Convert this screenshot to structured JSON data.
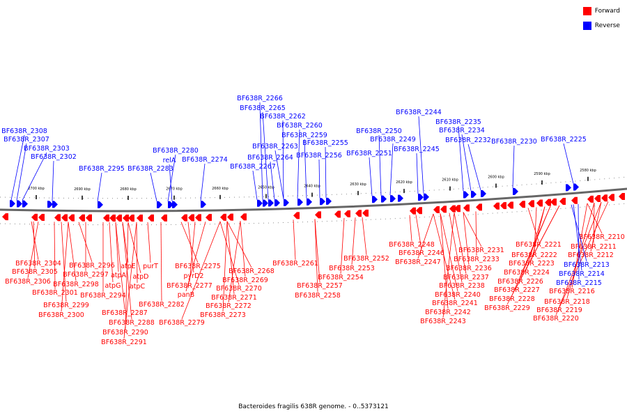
{
  "legend": {
    "forward": {
      "label": "Forward",
      "color": "#ff0000"
    },
    "reverse": {
      "label": "Reverse",
      "color": "#0000ff"
    }
  },
  "caption": "Bacteroides fragilis 638R genome. - 0..5373121",
  "axis": {
    "ticks": [
      "2700 kbp",
      "2690 kbp",
      "2680 kbp",
      "2670 kbp",
      "2660 kbp",
      "2650 kbp",
      "2640 kbp",
      "2630 kbp",
      "2620 kbp",
      "2610 kbp",
      "2600 kbp",
      "2590 kbp",
      "2580 kbp"
    ]
  },
  "reverse_labels": [
    "BF638R_2308",
    "BF638R_2307",
    "BF638R_2303",
    "BF638R_2302",
    "BF638R_2295",
    "BF638R_2283",
    "BF638R_2280",
    "relA",
    "BF638R_2274",
    "BF638R_2267",
    "BF638R_2266",
    "BF638R_2265",
    "BF638R_2264",
    "BF638R_2263",
    "BF638R_2262",
    "BF638R_2260",
    "BF638R_2259",
    "BF638R_2256",
    "BF638R_2255",
    "BF638R_2251",
    "BF638R_2250",
    "BF638R_2249",
    "BF638R_2245",
    "BF638R_2244",
    "BF638R_2235",
    "BF638R_2234",
    "BF638R_2232",
    "BF638R_2230",
    "BF638R_2225"
  ],
  "forward_labels": [
    "BF638R_2304",
    "BF638R_2305",
    "BF638R_2306",
    "BF638R_2301",
    "BF638R_2299",
    "BF638R_2300",
    "BF638R_2296",
    "BF638R_2297",
    "BF638R_2298",
    "BF638R_2294",
    "atpG",
    "atpA",
    "atpE",
    "atpD",
    "atpC",
    "purT",
    "BF638R_2287",
    "BF638R_2288",
    "BF638R_2290",
    "BF638R_2291",
    "BF638R_2282",
    "BF638R_2275",
    "pyrD2",
    "BF638R_2277",
    "panB",
    "BF638R_2279",
    "BF638R_2268",
    "BF638R_2269",
    "BF638R_2270",
    "BF638R_2271",
    "BF638R_2272",
    "BF638R_2273",
    "BF638R_2261",
    "BF638R_2257",
    "BF638R_2258",
    "BF638R_2252",
    "BF638R_2253",
    "BF638R_2254",
    "BF638R_2248",
    "BF638R_2246",
    "BF638R_2247",
    "BF638R_2231",
    "BF638R_2233",
    "BF638R_2236",
    "BF638R_2237",
    "BF638R_2238",
    "BF638R_2240",
    "BF638R_2241",
    "BF638R_2242",
    "BF638R_2243",
    "BF638R_2221",
    "BF638R_2222",
    "BF638R_2223",
    "BF638R_2224",
    "BF638R_2226",
    "BF638R_2227",
    "BF638R_2228",
    "BF638R_2229",
    "BF638R_2210",
    "BF638R_2211",
    "BF638R_2212",
    "BF638R_2216",
    "BF638R_2218",
    "BF638R_2219",
    "BF638R_2220"
  ],
  "other_reverse_labels": [
    "BF638R_2213",
    "BF638R_2214",
    "BF638R_2215"
  ]
}
